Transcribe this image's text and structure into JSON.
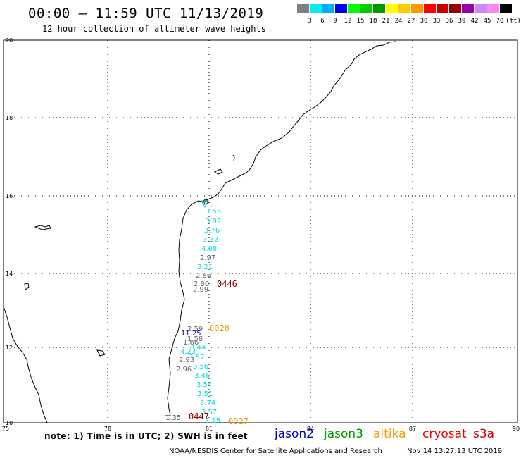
{
  "title": "00:00 – 11:59 UTC 11/13/2019",
  "subtitle": "12 hour collection of altimeter wave heights",
  "scale": {
    "unit": "(ft)",
    "colors": [
      "#7f7f7f",
      "#00eeee",
      "#00aaff",
      "#0000ee",
      "#00ff00",
      "#00cc00",
      "#009900",
      "#ffff00",
      "#ffcc00",
      "#ff9900",
      "#ff0000",
      "#cc0000",
      "#990000",
      "#9900aa",
      "#cc88ff",
      "#ff88ee",
      "#000000"
    ],
    "labels": [
      "3",
      "6",
      "9",
      "12",
      "15",
      "18",
      "21",
      "24",
      "27",
      "30",
      "33",
      "36",
      "39",
      "42",
      "45",
      "70"
    ]
  },
  "axes": {
    "lon_ticks": [
      "75",
      "78",
      "81",
      "84",
      "87",
      "90"
    ],
    "lat_ticks": [
      "10",
      "12",
      "14",
      "16",
      "18",
      "20"
    ]
  },
  "observations": [
    {
      "v": "3.55",
      "c": "cyan"
    },
    {
      "v": "3.02",
      "c": "cyan"
    },
    {
      "v": "3.76",
      "c": "cyan"
    },
    {
      "v": "3.32",
      "c": "cyan"
    },
    {
      "v": "4.08",
      "c": "cyan"
    },
    {
      "v": "2.97",
      "c": "gray"
    },
    {
      "v": "3.21",
      "c": "cyan"
    },
    {
      "v": "2.86",
      "c": "gray"
    },
    {
      "v": "2.80",
      "c": "gray"
    },
    {
      "v": "2.99",
      "c": "gray"
    },
    {
      "v": "2.59",
      "c": "gray"
    },
    {
      "v": "11.25",
      "c": "blue"
    },
    {
      "v": "1.58",
      "c": "gray"
    },
    {
      "v": "1.66",
      "c": "gray"
    },
    {
      "v": "3.44",
      "c": "cyan"
    },
    {
      "v": "4.23",
      "c": "cyan"
    },
    {
      "v": "3.57",
      "c": "cyan"
    },
    {
      "v": "2.93",
      "c": "gray"
    },
    {
      "v": "3.56",
      "c": "cyan"
    },
    {
      "v": "2.96",
      "c": "gray"
    },
    {
      "v": "3.46",
      "c": "cyan"
    },
    {
      "v": "3.54",
      "c": "cyan"
    },
    {
      "v": "3.51",
      "c": "cyan"
    },
    {
      "v": "3.74",
      "c": "cyan"
    },
    {
      "v": "3.57",
      "c": "cyan"
    },
    {
      "v": "1.35",
      "c": "gray"
    },
    {
      "v": "3.15",
      "c": "cyan"
    }
  ],
  "pass_labels": [
    {
      "t": "0446",
      "c": "darkred"
    },
    {
      "t": "0028",
      "c": "orange"
    },
    {
      "t": "0447",
      "c": "darkred"
    },
    {
      "t": "0027",
      "c": "orange"
    }
  ],
  "note": "note: 1) Time is in UTC; 2) SWH is in feet",
  "satellites": [
    {
      "name": "jason2",
      "color": "#0000cc"
    },
    {
      "name": "jason3",
      "color": "#009900"
    },
    {
      "name": "altika",
      "color": "#ff9900"
    },
    {
      "name": "cryosat",
      "color": "#ee0000"
    },
    {
      "name": "s3a",
      "color": "#cc0000"
    }
  ],
  "credit": "NOAA/NESDIS Center for Satellite Applications and Research",
  "timestamp": "Nov 14 13:27:13 UTC 2019"
}
